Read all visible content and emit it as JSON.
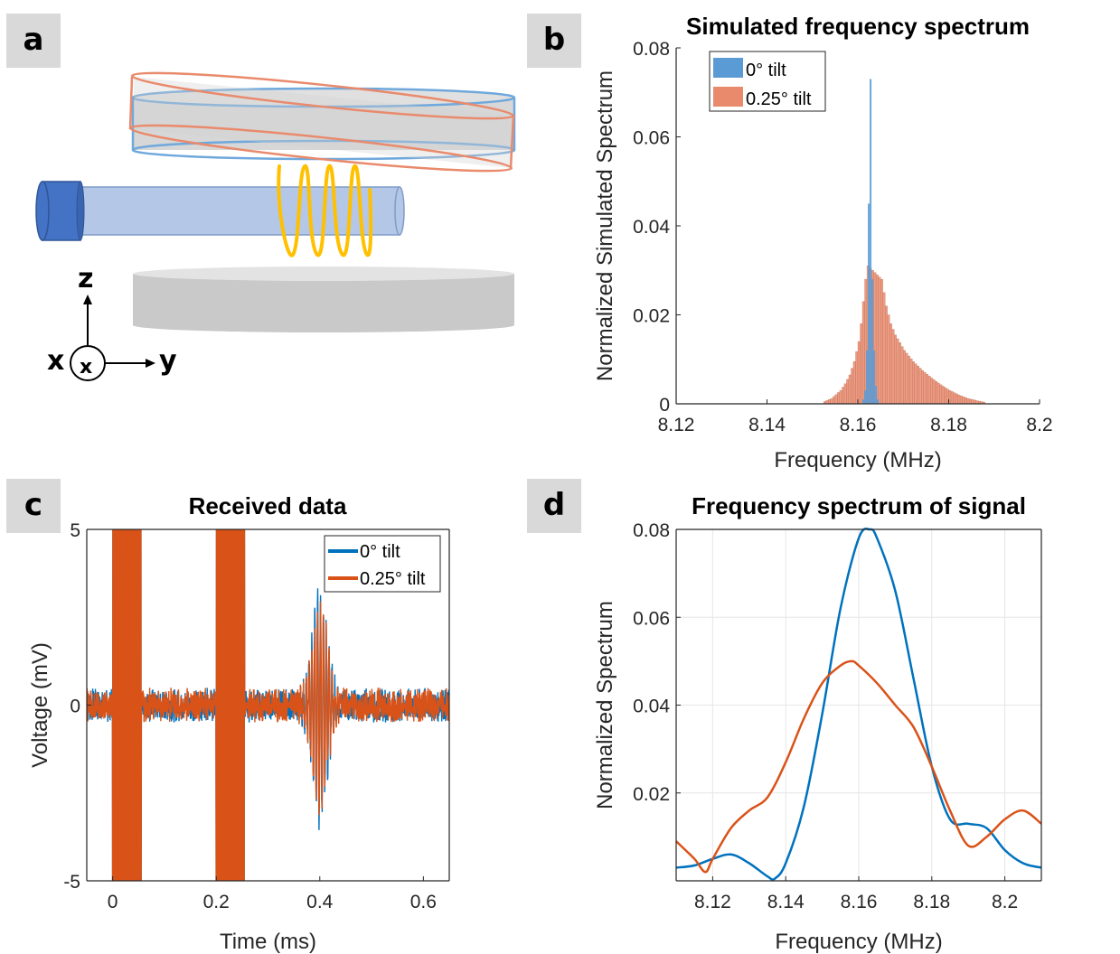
{
  "panels": {
    "a": "a",
    "b": "b",
    "c": "c",
    "d": "d"
  },
  "diagram_a": {
    "axis_labels": {
      "z": "z",
      "x": "x",
      "y": "y",
      "x_marker": "x"
    },
    "colors": {
      "blue_ring": "#6fa8dc",
      "orange_ring": "#e98a6c",
      "plate": "#c9c9c9",
      "tube": "#b4c7e7",
      "tube_cap": "#4472c4",
      "coil": "#ffc000"
    }
  },
  "chart_data": [
    {
      "id": "b",
      "type": "bar",
      "title": "Simulated frequency spectrum",
      "xlabel": "Frequency (MHz)",
      "ylabel": "Normalized Simulated Spectrum",
      "xlim": [
        8.12,
        8.2
      ],
      "ylim": [
        0,
        0.08
      ],
      "xticks": [
        8.12,
        8.14,
        8.16,
        8.18,
        8.2
      ],
      "xtick_labels": [
        "8.12",
        "8.14",
        "8.16",
        "8.18",
        "8.2"
      ],
      "yticks": [
        0,
        0.02,
        0.04,
        0.06,
        0.08
      ],
      "ytick_labels": [
        "0",
        "0.02",
        "0.04",
        "0.06",
        "0.08"
      ],
      "legend_position": "top-left",
      "series": [
        {
          "name": "0° tilt",
          "color": "#5b9bd5",
          "x": [
            8.1612,
            8.1616,
            8.162,
            8.1624,
            8.1628,
            8.1632,
            8.1636,
            8.164,
            8.1644
          ],
          "values": [
            0.001,
            0.003,
            0.012,
            0.045,
            0.073,
            0.028,
            0.012,
            0.004,
            0.001
          ]
        },
        {
          "name": "0.25° tilt",
          "color": "#e98a6c",
          "x": [
            8.152,
            8.154,
            8.156,
            8.157,
            8.158,
            8.159,
            8.16,
            8.1605,
            8.161,
            8.1615,
            8.162,
            8.163,
            8.164,
            8.165,
            8.166,
            8.167,
            8.168,
            8.17,
            8.172,
            8.174,
            8.176,
            8.178,
            8.18,
            8.182,
            8.184,
            8.186,
            8.188
          ],
          "values": [
            0.0003,
            0.0012,
            0.003,
            0.0045,
            0.0065,
            0.0095,
            0.014,
            0.018,
            0.023,
            0.028,
            0.031,
            0.03,
            0.029,
            0.028,
            0.022,
            0.018,
            0.0155,
            0.012,
            0.0095,
            0.0075,
            0.0058,
            0.0043,
            0.003,
            0.002,
            0.0012,
            0.0007,
            0.0003
          ]
        }
      ]
    },
    {
      "id": "c",
      "type": "line",
      "title": "Received data",
      "xlabel": "Time (ms)",
      "ylabel": "Voltage (mV)",
      "xlim": [
        -0.05,
        0.65
      ],
      "ylim": [
        -5,
        5
      ],
      "xticks": [
        0,
        0.2,
        0.4,
        0.6
      ],
      "xtick_labels": [
        "0",
        "0.2",
        "0.4",
        "0.6"
      ],
      "yticks": [
        -5,
        0,
        5
      ],
      "ytick_labels": [
        "-5",
        "0",
        "5"
      ],
      "legend_position": "top-right",
      "noise_amplitude_mv": 0.5,
      "excitation_pulses": [
        {
          "start": 0.0,
          "end": 0.055,
          "amplitude_mv": 5
        },
        {
          "start": 0.2,
          "end": 0.255,
          "amplitude_mv": 5
        }
      ],
      "echo": {
        "center": 0.4,
        "sigma": 0.015,
        "frequency_cycles_per_ms": 180
      },
      "series": [
        {
          "name": "0° tilt",
          "color": "#0072bd",
          "echo_peak_mv": 3.2
        },
        {
          "name": "0.25° tilt",
          "color": "#d95319",
          "echo_peak_mv": 2.8
        }
      ]
    },
    {
      "id": "d",
      "type": "line",
      "title": "Frequency spectrum of signal",
      "xlabel": "Frequency (MHz)",
      "ylabel": "Normalized Spectrum",
      "xlim": [
        8.11,
        8.21
      ],
      "ylim": [
        0,
        0.08
      ],
      "xticks": [
        8.12,
        8.14,
        8.16,
        8.18,
        8.2
      ],
      "xtick_labels": [
        "8.12",
        "8.14",
        "8.16",
        "8.18",
        "8.2"
      ],
      "yticks": [
        0.02,
        0.04,
        0.06,
        0.08
      ],
      "ytick_labels": [
        "0.02",
        "0.04",
        "0.06",
        "0.08"
      ],
      "grid": true,
      "series": [
        {
          "name": "0° tilt",
          "color": "#0072bd",
          "x": [
            8.11,
            8.115,
            8.12,
            8.125,
            8.13,
            8.135,
            8.137,
            8.14,
            8.145,
            8.15,
            8.155,
            8.16,
            8.163,
            8.165,
            8.17,
            8.175,
            8.18,
            8.185,
            8.19,
            8.195,
            8.2,
            8.205,
            8.21
          ],
          "values": [
            0.003,
            0.0035,
            0.005,
            0.006,
            0.004,
            0.001,
            0.0005,
            0.004,
            0.017,
            0.038,
            0.062,
            0.078,
            0.08,
            0.078,
            0.066,
            0.046,
            0.026,
            0.014,
            0.013,
            0.012,
            0.007,
            0.004,
            0.003
          ]
        },
        {
          "name": "0.25° tilt",
          "color": "#d95319",
          "x": [
            8.11,
            8.115,
            8.118,
            8.12,
            8.125,
            8.13,
            8.135,
            8.14,
            8.145,
            8.15,
            8.155,
            8.158,
            8.16,
            8.165,
            8.17,
            8.175,
            8.18,
            8.185,
            8.19,
            8.195,
            8.2,
            8.205,
            8.21
          ],
          "values": [
            0.009,
            0.005,
            0.002,
            0.005,
            0.012,
            0.016,
            0.019,
            0.027,
            0.037,
            0.045,
            0.049,
            0.05,
            0.049,
            0.045,
            0.04,
            0.035,
            0.026,
            0.016,
            0.008,
            0.01,
            0.014,
            0.016,
            0.013
          ]
        }
      ]
    }
  ]
}
